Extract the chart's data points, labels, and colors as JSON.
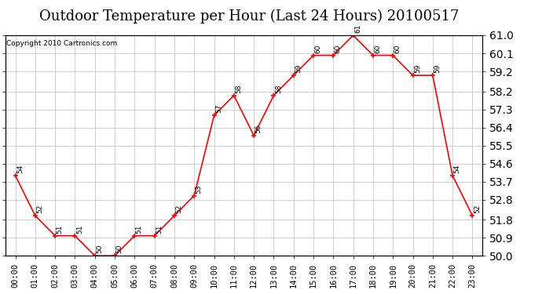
{
  "title": "Outdoor Temperature per Hour (Last 24 Hours) 20100517",
  "copyright_text": "Copyright 2010 Cartronics.com",
  "hours": [
    "00:00",
    "01:00",
    "02:00",
    "03:00",
    "04:00",
    "05:00",
    "06:00",
    "07:00",
    "08:00",
    "09:00",
    "10:00",
    "11:00",
    "12:00",
    "13:00",
    "14:00",
    "15:00",
    "16:00",
    "17:00",
    "18:00",
    "19:00",
    "20:00",
    "21:00",
    "22:00",
    "23:00"
  ],
  "temps": [
    54,
    52,
    51,
    51,
    50,
    50,
    51,
    51,
    52,
    53,
    57,
    58,
    56,
    58,
    59,
    60,
    60,
    61,
    60,
    60,
    59,
    59,
    54,
    52
  ],
  "ylim_min": 50.0,
  "ylim_max": 61.0,
  "line_color": "red",
  "marker_color": "red",
  "grid_color": "#bbbbbb",
  "bg_color": "white",
  "title_fontsize": 13,
  "label_fontsize": 6.5,
  "copyright_fontsize": 6.5,
  "tick_fontsize": 7.5,
  "yticks": [
    50.0,
    50.9,
    51.8,
    52.8,
    53.7,
    54.6,
    55.5,
    56.4,
    57.3,
    58.2,
    59.2,
    60.1,
    61.0
  ]
}
